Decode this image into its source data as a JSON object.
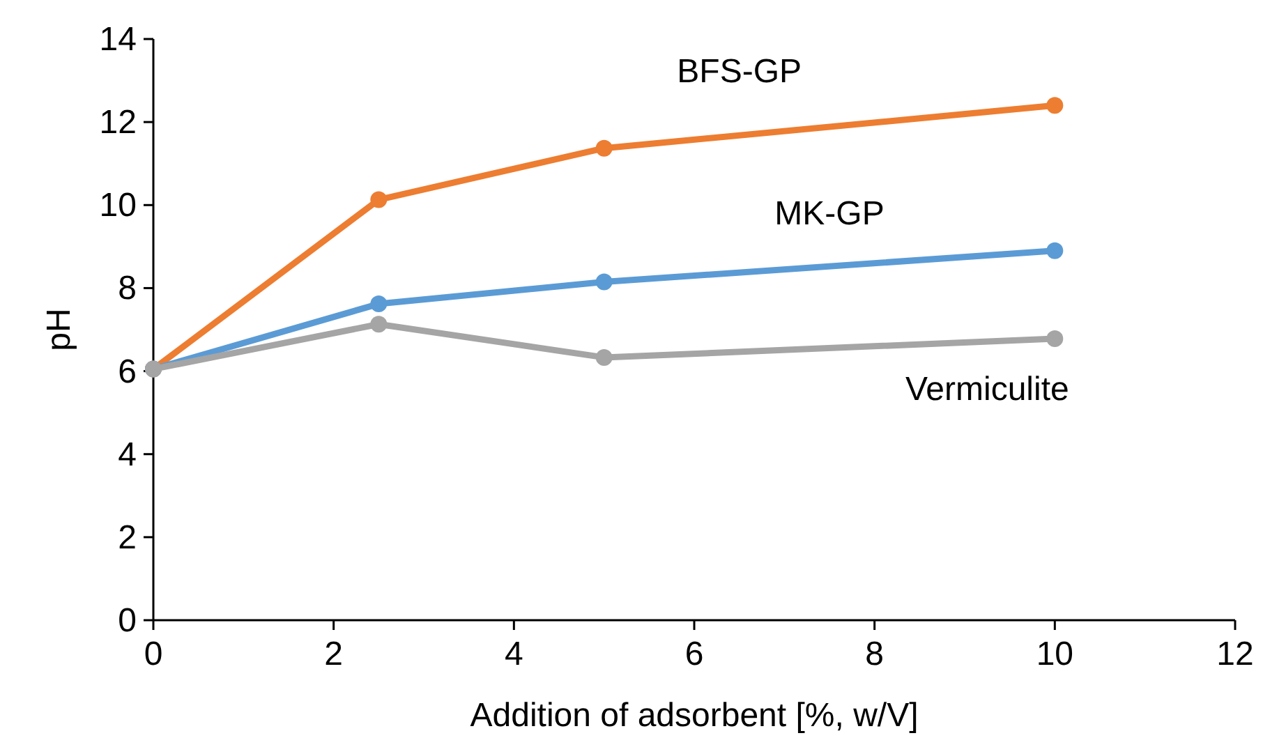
{
  "chart_data": {
    "type": "line",
    "xlabel": "Addition of adsorbent [%, w/V]",
    "ylabel": "pH",
    "x": [
      0,
      2.5,
      5,
      10
    ],
    "series": [
      {
        "name": "BFS-GP",
        "color": "#ed7d31",
        "values": [
          6.05,
          10.13,
          11.37,
          12.4
        ]
      },
      {
        "name": "MK-GP",
        "color": "#5b9bd5",
        "values": [
          6.05,
          7.62,
          8.15,
          8.9
        ]
      },
      {
        "name": "Vermiculite",
        "color": "#a5a5a5",
        "values": [
          6.05,
          7.13,
          6.33,
          6.78
        ]
      }
    ],
    "xlim": [
      0,
      12
    ],
    "xticks": [
      0,
      2,
      4,
      6,
      8,
      10,
      12
    ],
    "ylim": [
      0,
      14
    ],
    "yticks": [
      0,
      2,
      4,
      6,
      8,
      10,
      12,
      14
    ],
    "marker": "circle",
    "line_style": "solid",
    "grid": false
  }
}
